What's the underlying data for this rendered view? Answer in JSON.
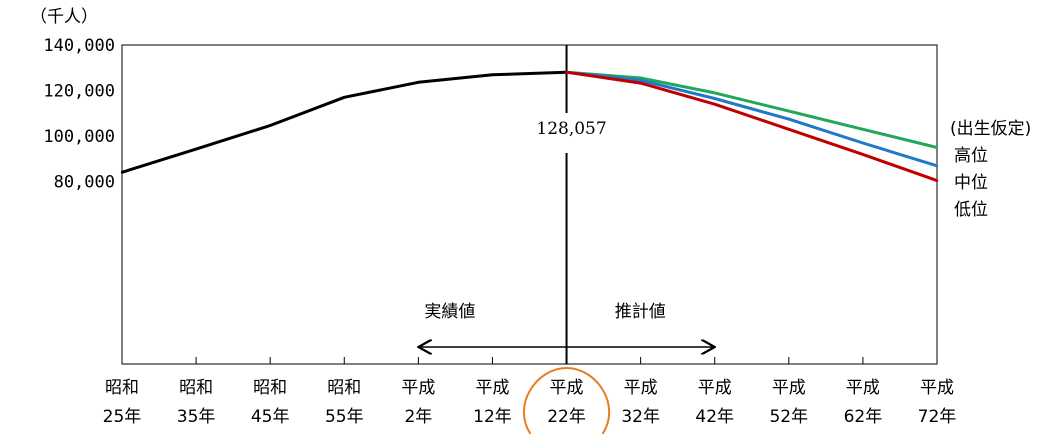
{
  "chart_data": {
    "type": "line",
    "unit_label": "（千人）",
    "categories": [
      [
        "昭和",
        "25年"
      ],
      [
        "昭和",
        "35年"
      ],
      [
        "昭和",
        "45年"
      ],
      [
        "昭和",
        "55年"
      ],
      [
        "平成",
        "2年"
      ],
      [
        "平成",
        "12年"
      ],
      [
        "平成",
        "22年"
      ],
      [
        "平成",
        "32年"
      ],
      [
        "平成",
        "42年"
      ],
      [
        "平成",
        "52年"
      ],
      [
        "平成",
        "62年"
      ],
      [
        "平成",
        "72年"
      ]
    ],
    "y_ticks": [
      "140,000",
      "120,000",
      "100,000",
      "80,000"
    ],
    "ylim": [
      0,
      140000
    ],
    "series": [
      {
        "color": "#000000",
        "values": [
          84115,
          94302,
          104665,
          117060,
          123611,
          126926,
          128057,
          null,
          null,
          null,
          null,
          null
        ]
      },
      {
        "name": "高位",
        "color": "#22a65a",
        "values": [
          null,
          null,
          null,
          null,
          null,
          null,
          128057,
          125500,
          119000,
          111000,
          103000,
          95000
        ]
      },
      {
        "name": "中位",
        "color": "#1f78c8",
        "values": [
          null,
          null,
          null,
          null,
          null,
          null,
          128057,
          124500,
          116500,
          107500,
          97000,
          87000
        ]
      },
      {
        "name": "低位",
        "color": "#c00000",
        "values": [
          null,
          null,
          null,
          null,
          null,
          null,
          128057,
          123300,
          114000,
          103000,
          92000,
          80500
        ]
      }
    ],
    "annotation": "128,057",
    "legend_title": "(出生仮定)",
    "legend_items": [
      "高位",
      "中位",
      "低位"
    ],
    "arrow_labels": {
      "left": "実績値",
      "right": "推計値"
    },
    "highlight_color": "#e67e22",
    "highlight_category_index": 6
  }
}
